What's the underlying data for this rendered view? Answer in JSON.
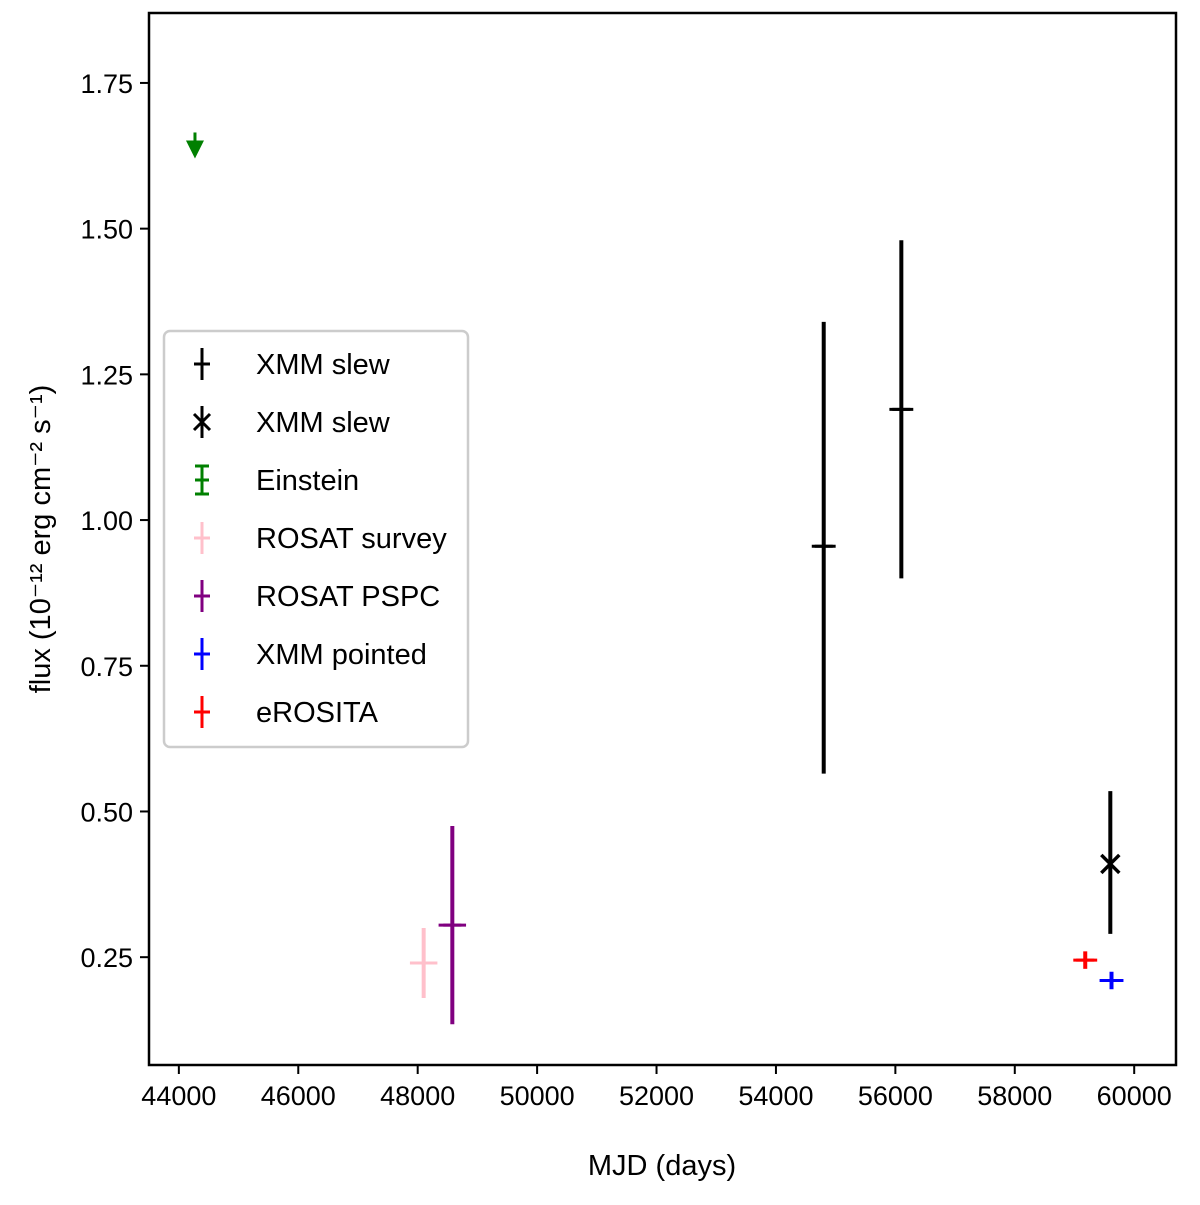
{
  "chart_data": {
    "type": "scatter",
    "xlabel": "MJD (days)",
    "ylabel": "flux (10⁻¹² erg cm⁻² s⁻¹)",
    "xlim": [
      43500,
      60700
    ],
    "ylim": [
      0.065,
      1.87
    ],
    "xticks": [
      "44000",
      "46000",
      "48000",
      "50000",
      "52000",
      "54000",
      "56000",
      "58000",
      "60000"
    ],
    "yticks": [
      "0.25",
      "0.50",
      "0.75",
      "1.00",
      "1.25",
      "1.50",
      "1.75"
    ],
    "grid": false,
    "legend_position": "center-left",
    "series": [
      {
        "name": "XMM slew",
        "marker": "+",
        "color": "#000000",
        "points": [
          {
            "x": 54800,
            "y": 0.955,
            "ylo": 0.565,
            "yhi": 1.34,
            "xerr": 200
          },
          {
            "x": 56100,
            "y": 1.19,
            "ylo": 0.9,
            "yhi": 1.48,
            "xerr": 200
          }
        ]
      },
      {
        "name": "XMM slew",
        "marker": "x",
        "color": "#000000",
        "points": [
          {
            "x": 59600,
            "y": 0.41,
            "ylo": 0.29,
            "yhi": 0.535,
            "xerr": 0
          }
        ]
      },
      {
        "name": "Einstein",
        "marker": "upper-limit",
        "color": "#008000",
        "points": [
          {
            "x": 44270,
            "y": 1.665
          }
        ]
      },
      {
        "name": "ROSAT survey",
        "marker": "+",
        "color": "#ffc0cb",
        "points": [
          {
            "x": 48100,
            "y": 0.24,
            "ylo": 0.18,
            "yhi": 0.3,
            "xerr": 230
          }
        ]
      },
      {
        "name": "ROSAT PSPC",
        "marker": "+",
        "color": "#800080",
        "points": [
          {
            "x": 48580,
            "y": 0.305,
            "ylo": 0.135,
            "yhi": 0.475,
            "xerr": 230
          }
        ]
      },
      {
        "name": "XMM pointed",
        "marker": "+",
        "color": "#0000ff",
        "points": [
          {
            "x": 59620,
            "y": 0.21,
            "ylo": 0.195,
            "yhi": 0.225,
            "xerr": 200
          }
        ]
      },
      {
        "name": "eROSITA",
        "marker": "+",
        "color": "#ff0000",
        "points": [
          {
            "x": 59180,
            "y": 0.245,
            "ylo": 0.23,
            "yhi": 0.26,
            "xerr": 200
          }
        ]
      }
    ]
  }
}
